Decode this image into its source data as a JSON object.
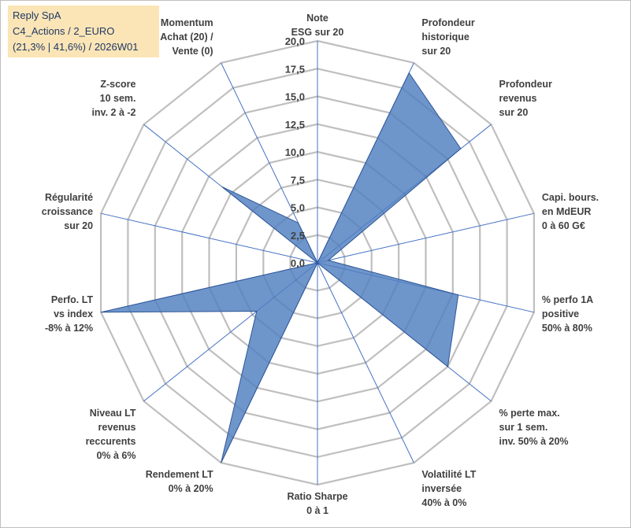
{
  "title": {
    "line1": "Reply SpA",
    "line2": "C4_Actions / 2_EURO",
    "line3": "(21,3% | 41,6%) / 2026W01"
  },
  "colors": {
    "grid": "#bfbfbf",
    "spoke": "#4472c4",
    "fill": "#4f7fbf",
    "stroke": "#2f5597",
    "title_bg": "#fbe5b6",
    "title_text": "#1f3864",
    "label_text": "#404040"
  },
  "chart_data": {
    "type": "radar",
    "rmin": 0,
    "rmax": 20,
    "ticks": [
      "0,0",
      "2,5",
      "5,0",
      "7,5",
      "10,0",
      "12,5",
      "15,0",
      "17,5",
      "20,0"
    ],
    "tick_values": [
      0,
      2.5,
      5,
      7.5,
      10,
      12.5,
      15,
      17.5,
      20
    ],
    "axes": [
      {
        "lines": [
          "Note",
          "ESG sur 20"
        ],
        "value": 0
      },
      {
        "lines": [
          "Profondeur",
          "historique",
          "sur 20"
        ],
        "value": 19
      },
      {
        "lines": [
          "Profondeur",
          "revenus",
          "sur 20"
        ],
        "value": 16.5
      },
      {
        "lines": [
          "Capi. bours.",
          "en MdEUR",
          "0 à 60 G€"
        ],
        "value": 1
      },
      {
        "lines": [
          "% perfo 1A",
          "positive",
          "50% à 80%"
        ],
        "value": 13
      },
      {
        "lines": [
          "% perte max.",
          "sur 1 sem.",
          "inv. 50% à 20%"
        ],
        "value": 15
      },
      {
        "lines": [
          "Volatilité LT",
          "inversée",
          "40% à 0%"
        ],
        "value": 0
      },
      {
        "lines": [
          "Ratio Sharpe",
          "0 à 1"
        ],
        "value": 0
      },
      {
        "lines": [
          "Rendement LT",
          "0% à 20%"
        ],
        "value": 20
      },
      {
        "lines": [
          "Niveau LT",
          "revenus",
          "reccurents",
          "0% à 6%"
        ],
        "value": 7
      },
      {
        "lines": [
          "Perfo. LT",
          "vs index",
          "-8% à 12%"
        ],
        "value": 20
      },
      {
        "lines": [
          "Régularité",
          "croissance",
          "sur 20"
        ],
        "value": 0
      },
      {
        "lines": [
          "Z-score",
          "10 sem.",
          "inv. 2 à -2"
        ],
        "value": 11
      },
      {
        "lines": [
          "Momentum",
          "Achat (20) /",
          "Vente (0)"
        ],
        "value": 4
      }
    ]
  }
}
